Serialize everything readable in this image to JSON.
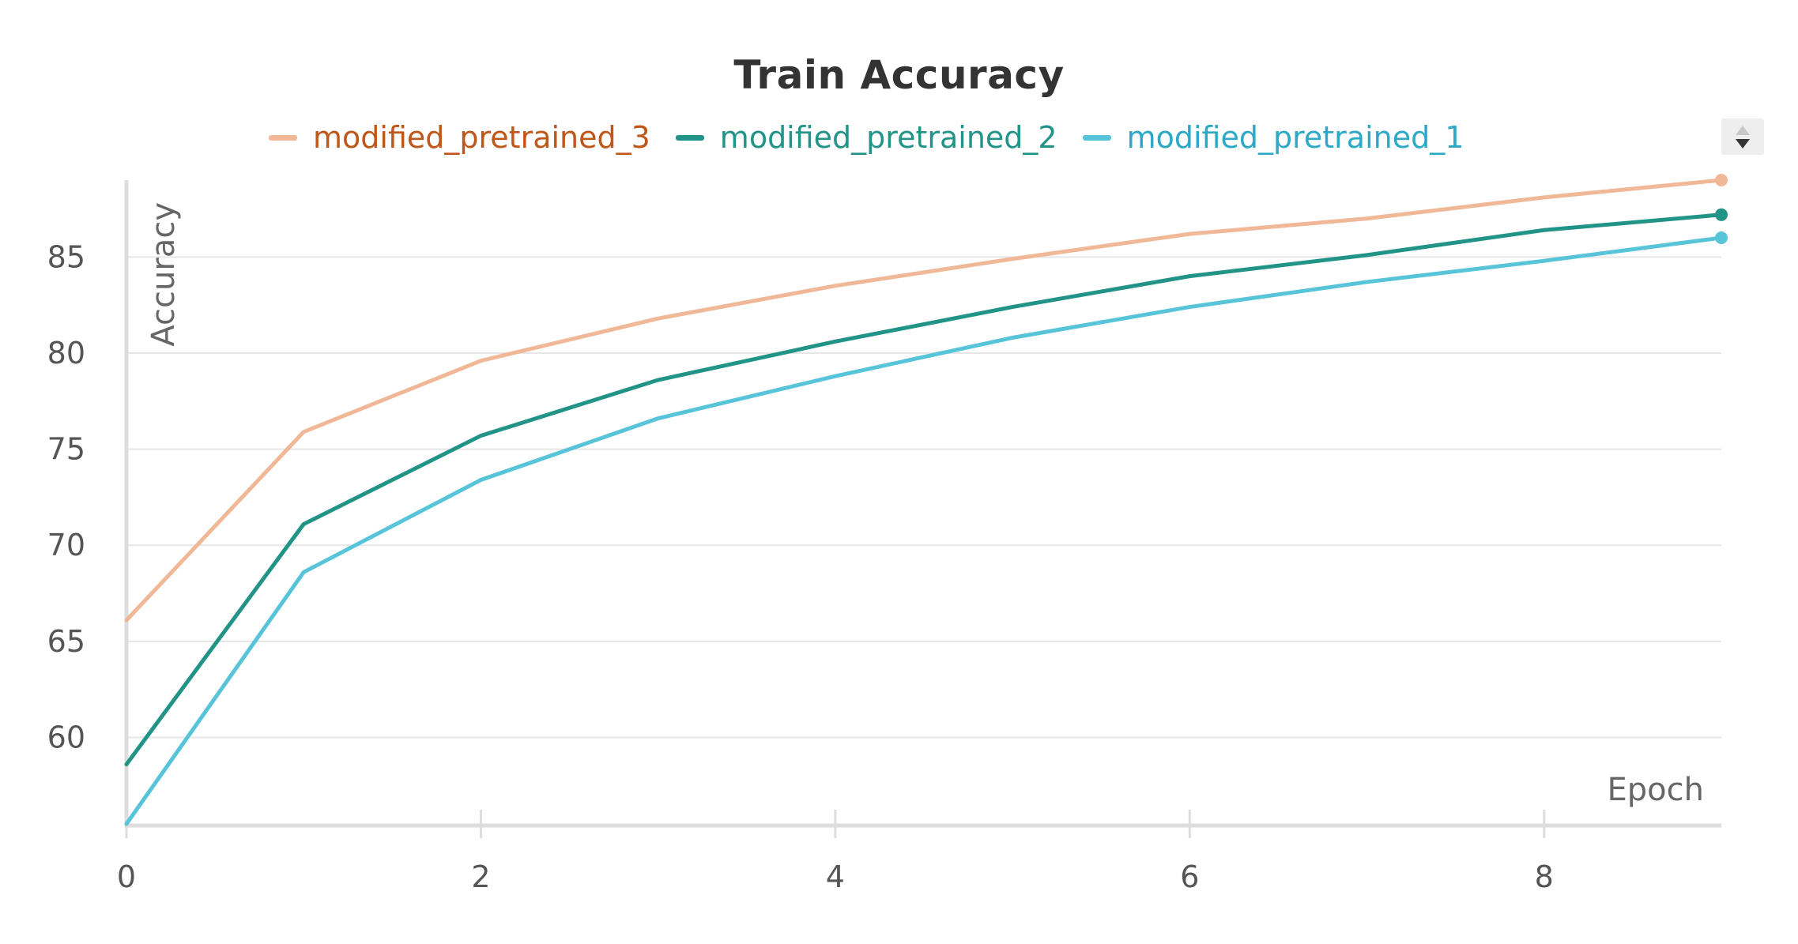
{
  "chart_data": {
    "type": "line",
    "title": "Train Accuracy",
    "xlabel": "Epoch",
    "ylabel": "Accuracy",
    "x": [
      0,
      1,
      2,
      3,
      4,
      5,
      6,
      7,
      8,
      9
    ],
    "xlim": [
      0,
      9
    ],
    "ylim": [
      55.5,
      89
    ],
    "xticks": [
      0,
      2,
      4,
      6,
      8
    ],
    "yticks": [
      60,
      65,
      70,
      75,
      80,
      85
    ],
    "grid": true,
    "legend_position": "top",
    "series": [
      {
        "name": "modified_pretrained_3",
        "color": "#f0b896",
        "text_color": "#c0571a",
        "values": [
          66.1,
          75.9,
          79.6,
          81.8,
          83.5,
          84.9,
          86.2,
          87.0,
          88.1,
          89.0
        ]
      },
      {
        "name": "modified_pretrained_2",
        "color": "#229487",
        "text_color": "#229487",
        "values": [
          58.6,
          71.1,
          75.7,
          78.6,
          80.6,
          82.4,
          84.0,
          85.1,
          86.4,
          87.2
        ]
      },
      {
        "name": "modified_pretrained_1",
        "color": "#58c4d9",
        "text_color": "#2ba9c6",
        "values": [
          55.5,
          68.6,
          73.4,
          76.6,
          78.8,
          80.8,
          82.4,
          83.7,
          84.8,
          86.0
        ]
      }
    ]
  },
  "legend_scroll_icon": "updown-arrows-icon"
}
